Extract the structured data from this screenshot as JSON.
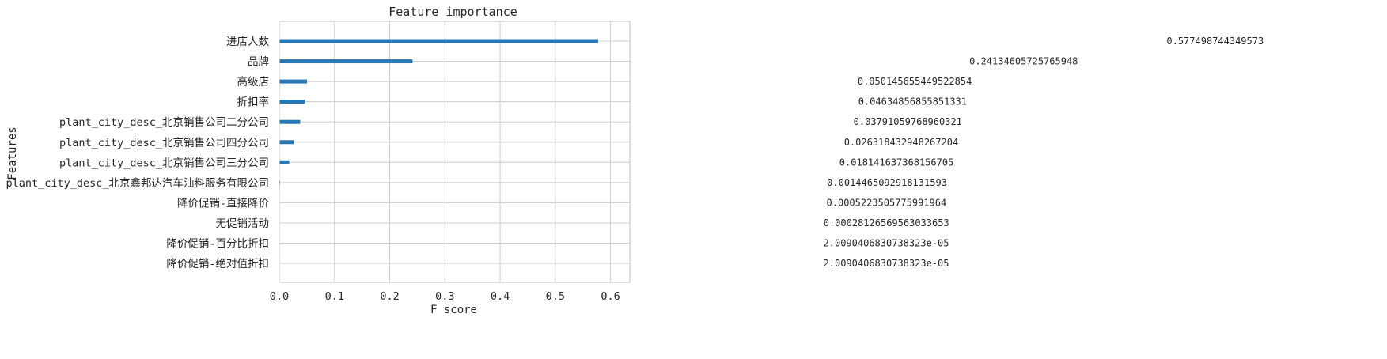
{
  "chart_data": {
    "type": "bar",
    "orientation": "horizontal",
    "title": "Feature importance",
    "xlabel": "F score",
    "ylabel": "Features",
    "xlim": [
      0,
      0.635
    ],
    "xticks": [
      "0.0",
      "0.1",
      "0.2",
      "0.3",
      "0.4",
      "0.5",
      "0.6"
    ],
    "grid": true,
    "bar_color": "#2878b5",
    "categories": [
      "进店人数",
      "品牌",
      "高级店",
      "折扣率",
      "plant_city_desc_北京销售公司二分公司",
      "plant_city_desc_北京销售公司四分公司",
      "plant_city_desc_北京销售公司三分公司",
      "plant_city_desc_北京鑫邦达汽车油料服务有限公司",
      "降价促销-直接降价",
      "无促销活动",
      "降价促销-百分比折扣",
      "降价促销-绝对值折扣"
    ],
    "values": [
      0.577498744349573,
      0.24134605725765948,
      0.050145655449522854,
      0.04634856855851331,
      0.03791059768960321,
      0.026318432948267204,
      0.018141637368156705,
      0.0014465092918131593,
      0.0005223505775991964,
      0.00028126569563033653,
      2.0090406830738323e-05,
      2.0090406830738323e-05
    ],
    "value_labels": [
      "0.577498744349573",
      "0.24134605725765948",
      "0.050145655449522854",
      "0.04634856855851331",
      "0.03791059768960321",
      "0.026318432948267204",
      "0.018141637368156705",
      "0.0014465092918131593",
      "0.0005223505775991964",
      "0.00028126569563033653",
      "2.0090406830738323e-05",
      "2.0090406830738323e-05"
    ]
  }
}
